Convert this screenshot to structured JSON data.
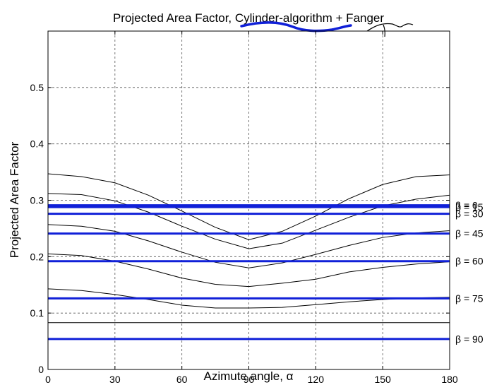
{
  "chart_data": {
    "type": "line",
    "title": "Projected Area Factor, Cylinder-algorithm + Fanger",
    "xlabel": "Azimute angle, α",
    "ylabel": "Projected Area Factor",
    "xlim": [
      0,
      180
    ],
    "ylim": [
      0,
      0.6
    ],
    "xticks": [
      "0",
      "30",
      "60",
      "90",
      "120",
      "150",
      "180"
    ],
    "yticks": [
      "0",
      "0.1",
      "0.2",
      "0.3",
      "0.4",
      "0.5"
    ],
    "grid": true,
    "x": [
      0,
      15,
      30,
      45,
      60,
      75,
      90,
      105,
      120,
      135,
      150,
      165,
      180
    ],
    "black_series": [
      {
        "values": [
          0.347,
          0.342,
          0.331,
          0.309,
          0.281,
          0.252,
          0.23,
          0.245,
          0.272,
          0.303,
          0.328,
          0.342,
          0.345
        ]
      },
      {
        "values": [
          0.312,
          0.31,
          0.299,
          0.279,
          0.254,
          0.231,
          0.214,
          0.224,
          0.247,
          0.27,
          0.29,
          0.302,
          0.309
        ]
      },
      {
        "values": [
          0.257,
          0.254,
          0.245,
          0.228,
          0.208,
          0.19,
          0.18,
          0.189,
          0.204,
          0.22,
          0.234,
          0.242,
          0.246
        ]
      },
      {
        "values": [
          0.205,
          0.202,
          0.192,
          0.178,
          0.162,
          0.151,
          0.147,
          0.153,
          0.16,
          0.173,
          0.181,
          0.187,
          0.191
        ]
      },
      {
        "values": [
          0.143,
          0.14,
          0.133,
          0.124,
          0.114,
          0.109,
          0.109,
          0.11,
          0.115,
          0.12,
          0.124,
          0.127,
          0.128
        ]
      },
      {
        "values": [
          0.083,
          0.083,
          0.083,
          0.083,
          0.083,
          0.083,
          0.083,
          0.083,
          0.083,
          0.083,
          0.083,
          0.083,
          0.083
        ]
      }
    ],
    "blue_lines": [
      {
        "label": "β = 0",
        "value": 0.291
      },
      {
        "label": "β = 15",
        "value": 0.288
      },
      {
        "label": "β = 30",
        "value": 0.276
      },
      {
        "label": "β = 45",
        "value": 0.241
      },
      {
        "label": "β = 60",
        "value": 0.192
      },
      {
        "label": "β = 75",
        "value": 0.126
      },
      {
        "label": "β = 90",
        "value": 0.054
      }
    ],
    "colors": {
      "blue": "#1020d8",
      "black": "#000000",
      "grid": "#555555"
    }
  }
}
